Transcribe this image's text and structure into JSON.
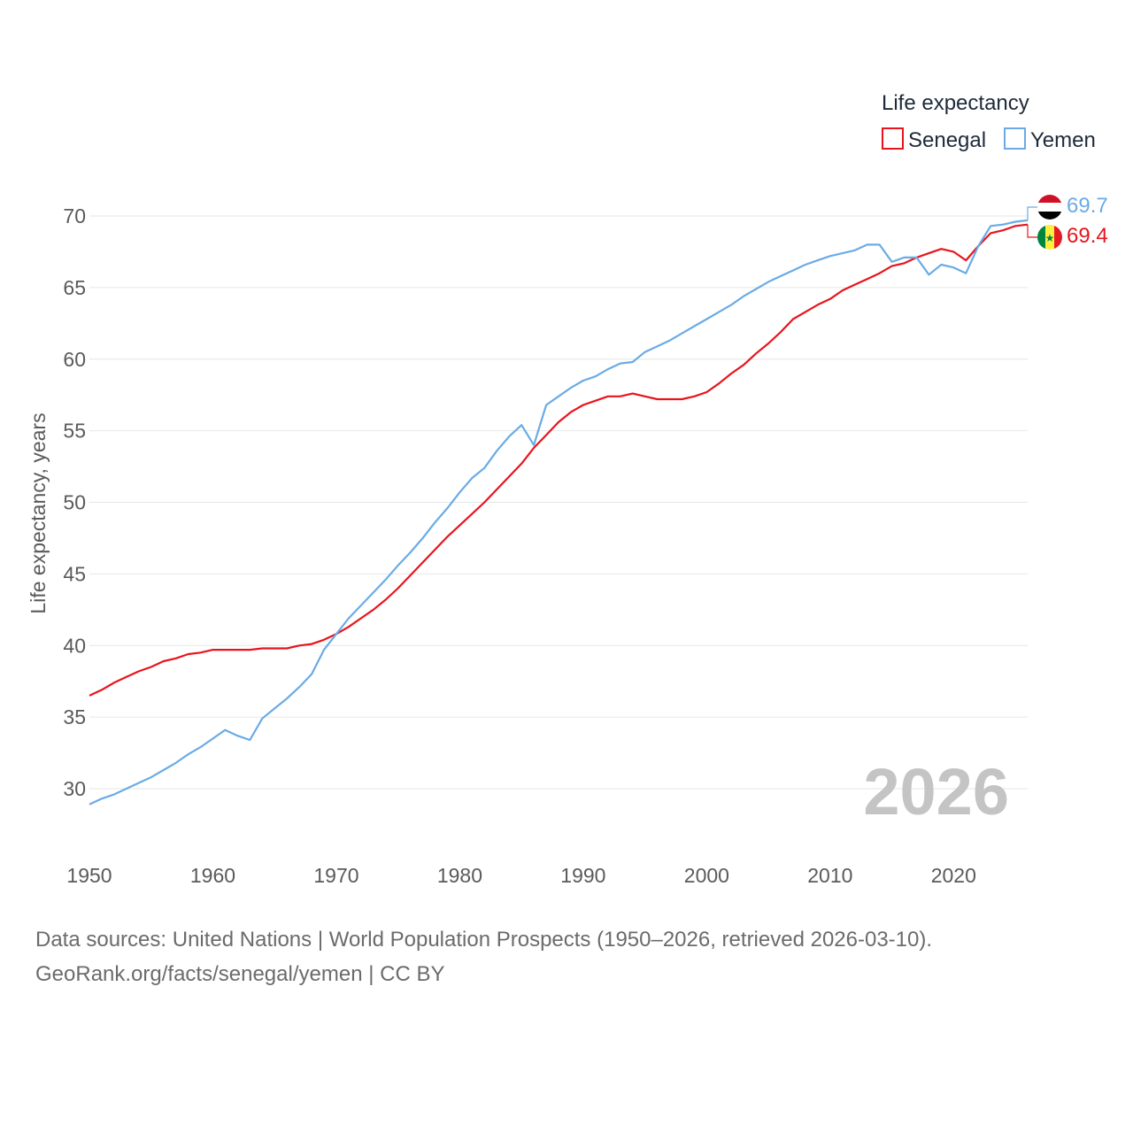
{
  "chart_data": {
    "type": "line",
    "title": "",
    "xlabel": "",
    "ylabel": "Life expectancy, years",
    "xlim": [
      1950,
      2026
    ],
    "ylim": [
      27,
      73
    ],
    "x_ticks": [
      1950,
      1960,
      1970,
      1980,
      1990,
      2000,
      2010,
      2020
    ],
    "y_ticks": [
      30,
      35,
      40,
      45,
      50,
      55,
      60,
      65,
      70
    ],
    "grid": true,
    "legend": {
      "title": "Life expectancy",
      "placement": "top-right"
    },
    "current_year": "2026",
    "series": [
      {
        "name": "Senegal",
        "color": "#e8141c",
        "end_label": "69.4",
        "flag": "senegal-flag",
        "x": [
          1950,
          1951,
          1952,
          1953,
          1954,
          1955,
          1956,
          1957,
          1958,
          1959,
          1960,
          1961,
          1962,
          1963,
          1964,
          1965,
          1966,
          1967,
          1968,
          1969,
          1970,
          1971,
          1972,
          1973,
          1974,
          1975,
          1976,
          1977,
          1978,
          1979,
          1980,
          1981,
          1982,
          1983,
          1984,
          1985,
          1986,
          1987,
          1988,
          1989,
          1990,
          1991,
          1992,
          1993,
          1994,
          1995,
          1996,
          1997,
          1998,
          1999,
          2000,
          2001,
          2002,
          2003,
          2004,
          2005,
          2006,
          2007,
          2008,
          2009,
          2010,
          2011,
          2012,
          2013,
          2014,
          2015,
          2016,
          2017,
          2018,
          2019,
          2020,
          2021,
          2022,
          2023,
          2024,
          2025,
          2026
        ],
        "values": [
          36.5,
          36.9,
          37.4,
          37.8,
          38.2,
          38.5,
          38.9,
          39.1,
          39.4,
          39.5,
          39.7,
          39.7,
          39.7,
          39.7,
          39.8,
          39.8,
          39.8,
          40.0,
          40.1,
          40.4,
          40.8,
          41.3,
          41.9,
          42.5,
          43.2,
          44.0,
          44.9,
          45.8,
          46.7,
          47.6,
          48.4,
          49.2,
          50.0,
          50.9,
          51.8,
          52.7,
          53.8,
          54.7,
          55.6,
          56.3,
          56.8,
          57.1,
          57.4,
          57.4,
          57.6,
          57.4,
          57.2,
          57.2,
          57.2,
          57.4,
          57.7,
          58.3,
          59.0,
          59.6,
          60.4,
          61.1,
          61.9,
          62.8,
          63.3,
          63.8,
          64.2,
          64.8,
          65.2,
          65.6,
          66.0,
          66.5,
          66.7,
          67.1,
          67.4,
          67.7,
          67.5,
          66.9,
          67.9,
          68.8,
          69.0,
          69.3,
          69.4
        ]
      },
      {
        "name": "Yemen",
        "color": "#6aabe6",
        "end_label": "69.7",
        "flag": "yemen-flag",
        "x": [
          1950,
          1951,
          1952,
          1953,
          1954,
          1955,
          1956,
          1957,
          1958,
          1959,
          1960,
          1961,
          1962,
          1963,
          1964,
          1965,
          1966,
          1967,
          1968,
          1969,
          1970,
          1971,
          1972,
          1973,
          1974,
          1975,
          1976,
          1977,
          1978,
          1979,
          1980,
          1981,
          1982,
          1983,
          1984,
          1985,
          1986,
          1987,
          1988,
          1989,
          1990,
          1991,
          1992,
          1993,
          1994,
          1995,
          1996,
          1997,
          1998,
          1999,
          2000,
          2001,
          2002,
          2003,
          2004,
          2005,
          2006,
          2007,
          2008,
          2009,
          2010,
          2011,
          2012,
          2013,
          2014,
          2015,
          2016,
          2017,
          2018,
          2019,
          2020,
          2021,
          2022,
          2023,
          2024,
          2025,
          2026
        ],
        "values": [
          28.9,
          29.3,
          29.6,
          30.0,
          30.4,
          30.8,
          31.3,
          31.8,
          32.4,
          32.9,
          33.5,
          34.1,
          33.7,
          33.4,
          34.9,
          35.6,
          36.3,
          37.1,
          38.0,
          39.7,
          40.8,
          41.9,
          42.8,
          43.7,
          44.6,
          45.6,
          46.5,
          47.5,
          48.6,
          49.6,
          50.7,
          51.7,
          52.4,
          53.6,
          54.6,
          55.4,
          54.0,
          56.8,
          57.4,
          58.0,
          58.5,
          58.8,
          59.3,
          59.7,
          59.8,
          60.5,
          60.9,
          61.3,
          61.8,
          62.3,
          62.8,
          63.3,
          63.8,
          64.4,
          64.9,
          65.4,
          65.8,
          66.2,
          66.6,
          66.9,
          67.2,
          67.4,
          67.6,
          68.0,
          68.0,
          66.8,
          67.1,
          67.1,
          65.9,
          66.6,
          66.4,
          66.0,
          67.9,
          69.3,
          69.4,
          69.6,
          69.7
        ]
      }
    ]
  },
  "footer": {
    "line1": "Data sources: United Nations | World Population Prospects (1950–2026, retrieved 2026-03-10).",
    "line2": "GeoRank.org/facts/senegal/yemen | CC BY"
  }
}
